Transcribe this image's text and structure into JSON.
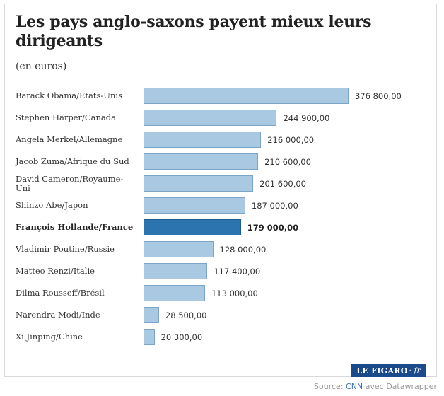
{
  "title": "Les pays anglo-saxons payent mieux leurs dirigeants",
  "subtitle": "(en euros)",
  "chart_data": {
    "type": "bar",
    "orientation": "horizontal",
    "title": "Les pays anglo-saxons payent mieux leurs dirigeants",
    "subtitle": "(en euros)",
    "categories": [
      "Barack Obama/Etats-Unis",
      "Stephen Harper/Canada",
      "Angela Merkel/Allemagne",
      "Jacob Zuma/Afrique du Sud",
      "David Cameron/Royaume-Uni",
      "Shinzo Abe/Japon",
      "François Hollande/France",
      "Vladimir Poutine/Russie",
      "Matteo Renzi/Italie",
      "Dilma Rousseff/Brésil",
      "Narendra Modi/Inde",
      "Xi Jinping/Chine"
    ],
    "values": [
      376800,
      244900,
      216000,
      210600,
      201600,
      187000,
      179000,
      128000,
      117400,
      113000,
      28500,
      20300
    ],
    "value_labels": [
      "376 800,00",
      "244 900,00",
      "216 000,00",
      "210 600,00",
      "201 600,00",
      "187 000,00",
      "179 000,00",
      "128 000,00",
      "117 400,00",
      "113 000,00",
      "28 500,00",
      "20 300,00"
    ],
    "highlight": "François Hollande/France",
    "xlim": [
      0,
      376800
    ],
    "grid": false,
    "colors": {
      "bar": "#a9c9e2",
      "bar_border": "#7aa5c9",
      "highlight": "#2b74b0",
      "highlight_border": "#1d5a8e"
    }
  },
  "logo": {
    "main": "LE FIGARO",
    "suffix": "· fr"
  },
  "source": {
    "prefix": "Source: ",
    "link": "CNN",
    "suffix": " avec Datawrapper"
  }
}
